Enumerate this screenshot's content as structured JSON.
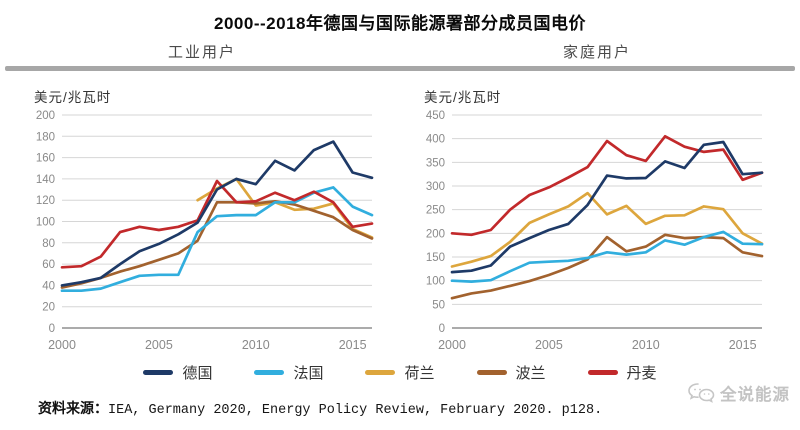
{
  "page": {
    "title": "2000--2018年德国与国际能源署部分成员国电价",
    "subtitle_left": "工业用户",
    "subtitle_right": "家庭用户"
  },
  "colors": {
    "germany": "#1e3a67",
    "france": "#31aede",
    "netherlands": "#dda63d",
    "poland": "#a2622e",
    "denmark": "#c2292b",
    "grid": "#d6d6d6",
    "axis": "#8f8f8f",
    "tick_text": "#8a8a8a",
    "divider": "#a7a7a7",
    "watermark": "#c3c3c3"
  },
  "legend": [
    {
      "label": "德国",
      "color_key": "germany"
    },
    {
      "label": "法国",
      "color_key": "france"
    },
    {
      "label": "荷兰",
      "color_key": "netherlands"
    },
    {
      "label": "波兰",
      "color_key": "poland"
    },
    {
      "label": "丹麦",
      "color_key": "denmark"
    }
  ],
  "footer": {
    "source_label": "资料来源：",
    "source_text": "IEA, Germany 2020, Energy Policy Review, February 2020. p128.",
    "watermark_text": "全说能源"
  },
  "chart_data": [
    {
      "type": "line",
      "title": "工业用户",
      "unit_label": "美元/兆瓦时",
      "x": [
        2000,
        2001,
        2002,
        2003,
        2004,
        2005,
        2006,
        2007,
        2008,
        2009,
        2010,
        2011,
        2012,
        2013,
        2014,
        2015,
        2016
      ],
      "x_ticks": [
        2000,
        2005,
        2010,
        2015
      ],
      "ylim": [
        0,
        200
      ],
      "ystep": 20,
      "y_ticks": [
        0,
        20,
        40,
        60,
        80,
        100,
        120,
        140,
        160,
        180,
        200
      ],
      "grid": true,
      "legend_position": "bottom-shared",
      "series": [
        {
          "name": "德国",
          "color_key": "germany",
          "z": 5,
          "values": [
            40,
            43,
            47,
            60,
            72,
            79,
            88,
            99,
            130,
            140,
            135,
            157,
            148,
            167,
            175,
            146,
            141
          ]
        },
        {
          "name": "法国",
          "color_key": "france",
          "z": 3,
          "values": [
            35,
            35,
            37,
            43,
            49,
            50,
            50,
            90,
            105,
            106,
            106,
            118,
            118,
            127,
            132,
            114,
            106
          ]
        },
        {
          "name": "荷兰",
          "color_key": "netherlands",
          "z": 1,
          "values": [
            null,
            null,
            null,
            null,
            null,
            null,
            null,
            120,
            131,
            140,
            115,
            118,
            111,
            112,
            117,
            93,
            85
          ]
        },
        {
          "name": "波兰",
          "color_key": "poland",
          "z": 2,
          "values": [
            38,
            42,
            47,
            53,
            58,
            64,
            70,
            82,
            118,
            118,
            117,
            119,
            116,
            110,
            104,
            92,
            84
          ]
        },
        {
          "name": "丹麦",
          "color_key": "denmark",
          "z": 4,
          "values": [
            57,
            58,
            67,
            90,
            95,
            92,
            95,
            101,
            138,
            118,
            119,
            127,
            120,
            128,
            118,
            95,
            98
          ]
        }
      ]
    },
    {
      "type": "line",
      "title": "家庭用户",
      "unit_label": "美元/兆瓦时",
      "x": [
        2000,
        2001,
        2002,
        2003,
        2004,
        2005,
        2006,
        2007,
        2008,
        2009,
        2010,
        2011,
        2012,
        2013,
        2014,
        2015,
        2016
      ],
      "x_ticks": [
        2000,
        2005,
        2010,
        2015
      ],
      "ylim": [
        0,
        450
      ],
      "ystep": 50,
      "y_ticks": [
        0,
        50,
        100,
        150,
        200,
        250,
        300,
        350,
        400,
        450
      ],
      "grid": true,
      "legend_position": "bottom-shared",
      "series": [
        {
          "name": "德国",
          "color_key": "germany",
          "z": 5,
          "values": [
            118,
            121,
            132,
            172,
            190,
            207,
            220,
            260,
            322,
            316,
            317,
            352,
            338,
            387,
            393,
            325,
            328
          ]
        },
        {
          "name": "法国",
          "color_key": "france",
          "z": 3,
          "values": [
            100,
            98,
            101,
            120,
            138,
            140,
            142,
            148,
            160,
            155,
            160,
            185,
            176,
            192,
            203,
            178,
            177
          ]
        },
        {
          "name": "荷兰",
          "color_key": "netherlands",
          "z": 1,
          "values": [
            130,
            140,
            152,
            182,
            222,
            240,
            257,
            285,
            240,
            258,
            220,
            237,
            238,
            257,
            251,
            200,
            178
          ]
        },
        {
          "name": "波兰",
          "color_key": "poland",
          "z": 2,
          "values": [
            63,
            73,
            79,
            89,
            99,
            112,
            127,
            145,
            192,
            162,
            172,
            197,
            190,
            192,
            190,
            160,
            152
          ]
        },
        {
          "name": "丹麦",
          "color_key": "denmark",
          "z": 4,
          "values": [
            200,
            197,
            207,
            250,
            281,
            297,
            318,
            340,
            395,
            365,
            353,
            405,
            383,
            372,
            377,
            313,
            328
          ]
        }
      ]
    }
  ]
}
